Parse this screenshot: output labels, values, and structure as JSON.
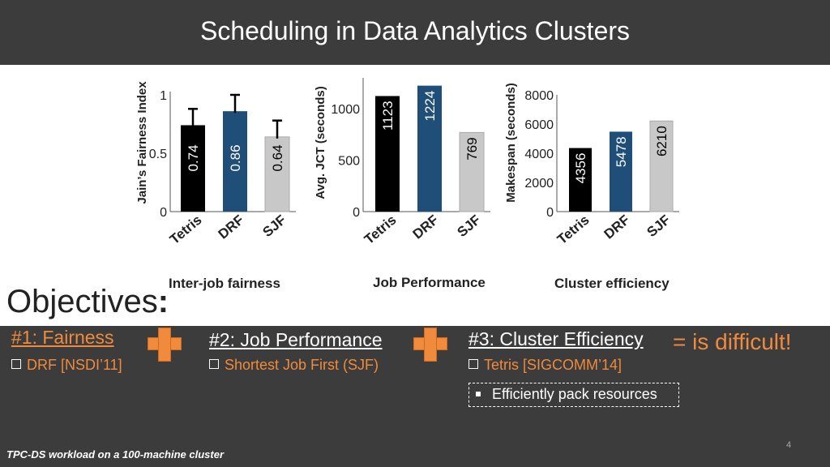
{
  "title": "Scheduling in Data Analytics Clusters",
  "chart_data": [
    {
      "type": "bar",
      "ylabel": "Jain’s Fairness Index",
      "categories": [
        "Tetris",
        "DRF",
        "SJF"
      ],
      "values": [
        0.74,
        0.86,
        0.64
      ],
      "value_labels": [
        "0.74",
        "0.86",
        "0.64"
      ],
      "ylim": [
        0,
        1
      ],
      "yticks": [
        "0",
        "0.5",
        "1"
      ],
      "error_bars": true,
      "colors": [
        "#000000",
        "#1f4e79",
        "#c8c8c8"
      ],
      "caption": "Inter-job fairness"
    },
    {
      "type": "bar",
      "ylabel": "Avg. JCT (seconds)",
      "categories": [
        "Tetris",
        "DRF",
        "SJF"
      ],
      "values": [
        1123,
        1224,
        769
      ],
      "value_labels": [
        "1123",
        "1224",
        "769"
      ],
      "ylim": [
        0,
        1300
      ],
      "yticks": [
        "0",
        "500",
        "1000"
      ],
      "colors": [
        "#000000",
        "#1f4e79",
        "#c8c8c8"
      ],
      "caption": "Job Performance"
    },
    {
      "type": "bar",
      "ylabel": "Makespan (seconds)",
      "categories": [
        "Tetris",
        "DRF",
        "SJF"
      ],
      "values": [
        4356,
        5478,
        6210
      ],
      "value_labels": [
        "4356",
        "5478",
        "6210"
      ],
      "ylim": [
        0,
        8000
      ],
      "yticks": [
        "0",
        "2000",
        "4000",
        "6000",
        "8000"
      ],
      "colors": [
        "#000000",
        "#1f4e79",
        "#c8c8c8"
      ],
      "caption": "Cluster efficiency"
    }
  ],
  "objectives_label": "Objectives",
  "objectives_colon": ":",
  "objectives": [
    {
      "label": "#1: Fairness",
      "sub": "DRF [NSDI’11]"
    },
    {
      "label": "#2: Job Performance",
      "sub": "Shortest Job First (SJF)"
    },
    {
      "label": "#3: Cluster Efficiency",
      "sub": "Tetris [SIGCOMM’14]"
    }
  ],
  "difficult": "=  is difficult!",
  "pack_text": "Efficiently pack resources",
  "footnote": "TPC-DS workload on a 100-machine cluster",
  "page_number": "4",
  "colors": {
    "accent": "#f08a3c",
    "dark_bg": "#3c3c3c",
    "drf_blue": "#1f4e79"
  }
}
